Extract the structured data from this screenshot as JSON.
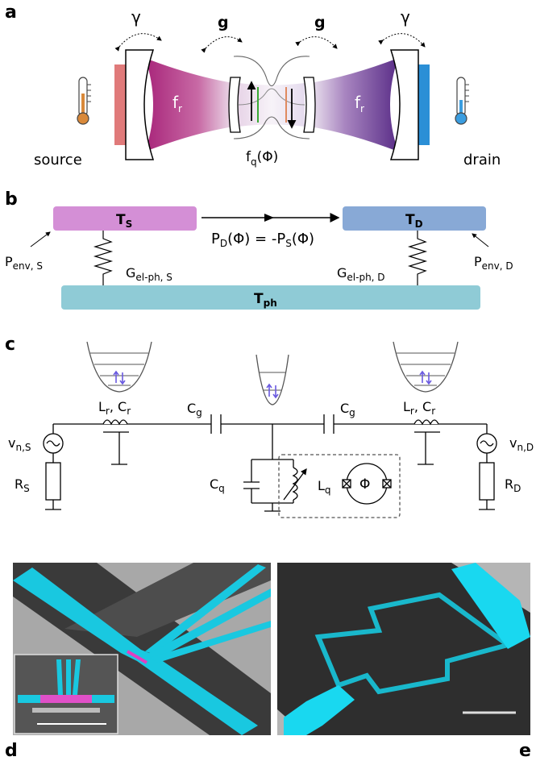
{
  "panels": {
    "a": "a",
    "b": "b",
    "c": "c",
    "d": "d",
    "e": "e"
  },
  "panel_a": {
    "gamma_left": "γ",
    "gamma_right": "γ",
    "g_left": "g",
    "g_right": "g",
    "fr_left_main": "f",
    "fr_left_sub": "r",
    "fr_right_main": "f",
    "fr_right_sub": "r",
    "fq_main": "f",
    "fq_sub": "q",
    "fq_arg": "(Φ)",
    "source": "source",
    "drain": "drain"
  },
  "panel_b": {
    "ts_main": "T",
    "ts_sub": "S",
    "td_main": "T",
    "td_sub": "D",
    "tph_main": "T",
    "tph_sub": "ph",
    "flow_text": "P",
    "flow_sub1": "D",
    "flow_mid": "(Φ) = -P",
    "flow_sub2": "S",
    "flow_end": "(Φ)",
    "penv_s_main": "P",
    "penv_s_sub": "env, S",
    "penv_d_main": "P",
    "penv_d_sub": "env, D",
    "gs_main": "G",
    "gs_sub": "el-ph, S",
    "gd_main": "G",
    "gd_sub": "el-ph, D"
  },
  "panel_c": {
    "vns_main": "v",
    "vns_sub": "n,S",
    "vnd_main": "v",
    "vnd_sub": "n,D",
    "rs_main": "R",
    "rs_sub": "S",
    "rd_main": "R",
    "rd_sub": "D",
    "lr_left": "L",
    "lr_left_sub": "r",
    "cr_left": ", C",
    "cr_left_sub": "r",
    "lr_right": "L",
    "lr_right_sub": "r",
    "cr_right": ", C",
    "cr_right_sub": "r",
    "cg_left": "C",
    "cg_left_sub": "g",
    "cg_right": "C",
    "cg_right_sub": "g",
    "cq": "C",
    "cq_sub": "q",
    "lq": "L",
    "lq_sub": "q",
    "phi": "Φ"
  },
  "colors": {
    "source_pink": "#e07a7a",
    "drain_blue": "#2b8fd6",
    "magenta": "#b0307f",
    "purple": "#6b3a8f",
    "ts_box": "#d48fd6",
    "td_box": "#88a9d6",
    "tph_box": "#8fcbd6",
    "cyan": "#19c8e0"
  }
}
